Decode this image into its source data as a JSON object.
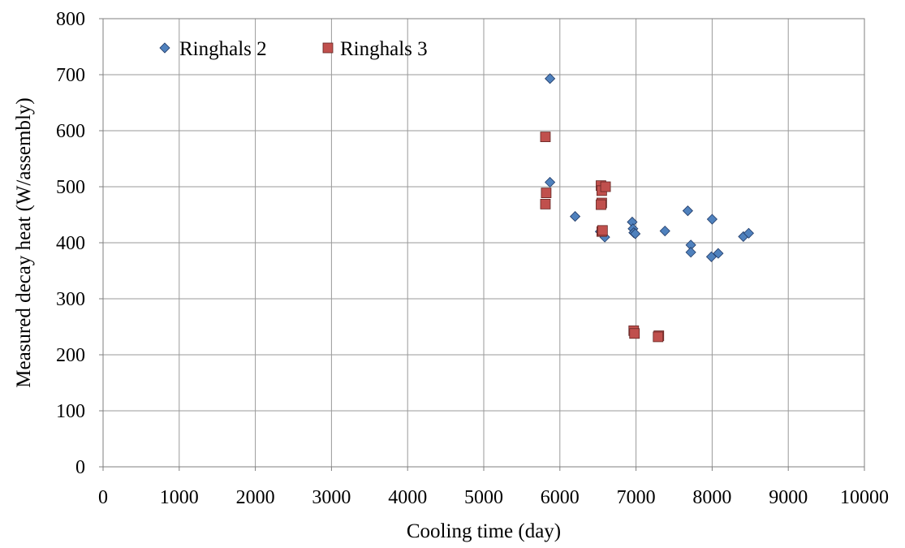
{
  "chart_data": {
    "type": "scatter",
    "title": "",
    "xlabel": "Cooling time (day)",
    "ylabel": "Measured decay heat (W/assembly)",
    "xlim": [
      0,
      10000
    ],
    "ylim": [
      0,
      800
    ],
    "x_ticks": [
      0,
      1000,
      2000,
      3000,
      4000,
      5000,
      6000,
      7000,
      8000,
      9000,
      10000
    ],
    "y_ticks": [
      0,
      100,
      200,
      300,
      400,
      500,
      600,
      700,
      800
    ],
    "grid": true,
    "legend_position": "top-left",
    "series": [
      {
        "name": "Ringhals 2",
        "marker": "diamond",
        "color": "#4f81bd",
        "points": [
          [
            5870,
            693
          ],
          [
            5870,
            508
          ],
          [
            6200,
            447
          ],
          [
            6530,
            420
          ],
          [
            6590,
            410
          ],
          [
            6950,
            437
          ],
          [
            6960,
            425
          ],
          [
            6970,
            418
          ],
          [
            6990,
            416
          ],
          [
            7380,
            421
          ],
          [
            7680,
            457
          ],
          [
            7720,
            396
          ],
          [
            7720,
            383
          ],
          [
            8000,
            442
          ],
          [
            7990,
            375
          ],
          [
            8080,
            381
          ],
          [
            8410,
            411
          ],
          [
            8480,
            417
          ]
        ]
      },
      {
        "name": "Ringhals 3",
        "marker": "square",
        "color": "#c0504d",
        "points": [
          [
            5810,
            589
          ],
          [
            5820,
            489
          ],
          [
            5810,
            469
          ],
          [
            6540,
            502
          ],
          [
            6550,
            493
          ],
          [
            6600,
            500
          ],
          [
            6550,
            471
          ],
          [
            6540,
            468
          ],
          [
            6550,
            420
          ],
          [
            6560,
            422
          ],
          [
            6970,
            243
          ],
          [
            6980,
            238
          ],
          [
            7300,
            234
          ],
          [
            7290,
            232
          ]
        ]
      }
    ]
  }
}
